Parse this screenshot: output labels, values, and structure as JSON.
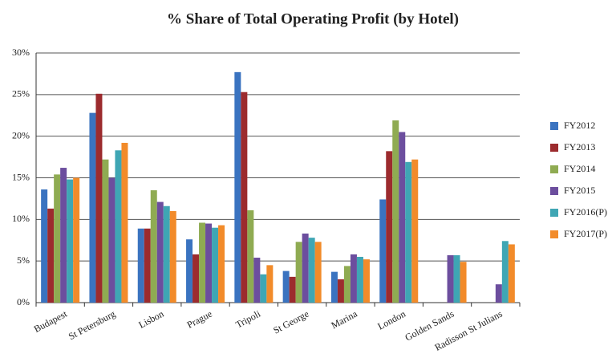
{
  "chart_data": {
    "type": "bar",
    "title": "% Share of Total Operating Profit (by Hotel)",
    "categories": [
      "Budapest",
      "St Petersburg",
      "Lisbon",
      "Prague",
      "Tripoli",
      "St George",
      "Marina",
      "London",
      "Golden Sands",
      "Radisson St Julians"
    ],
    "series": [
      {
        "name": "FY2012",
        "color": "#3a73c0",
        "values": [
          13.6,
          22.8,
          8.9,
          7.6,
          27.7,
          3.8,
          3.7,
          12.4,
          null,
          null
        ]
      },
      {
        "name": "FY2013",
        "color": "#9c2b2e",
        "values": [
          11.3,
          25.1,
          8.9,
          5.8,
          25.3,
          3.1,
          2.8,
          18.2,
          null,
          null
        ]
      },
      {
        "name": "FY2014",
        "color": "#8fab52",
        "values": [
          15.4,
          17.2,
          13.5,
          9.6,
          11.1,
          7.3,
          4.4,
          21.9,
          null,
          null
        ]
      },
      {
        "name": "FY2015",
        "color": "#6c4e9e",
        "values": [
          16.2,
          15.0,
          12.1,
          9.5,
          5.4,
          8.3,
          5.8,
          20.5,
          5.7,
          2.2
        ]
      },
      {
        "name": "FY2016(P)",
        "color": "#3fa6b4",
        "values": [
          14.8,
          18.3,
          11.6,
          9.0,
          3.4,
          7.8,
          5.5,
          16.9,
          5.7,
          7.4
        ]
      },
      {
        "name": "FY2017(P)",
        "color": "#f28b2a",
        "values": [
          15.0,
          19.2,
          11.0,
          9.3,
          4.5,
          7.3,
          5.2,
          17.2,
          4.9,
          7.0
        ]
      }
    ],
    "ylim": [
      0,
      30
    ],
    "yticks": [
      {
        "value": 0,
        "label": "0%"
      },
      {
        "value": 5,
        "label": "5%"
      },
      {
        "value": 10,
        "label": "10%"
      },
      {
        "value": 15,
        "label": "15%"
      },
      {
        "value": 20,
        "label": "20%"
      },
      {
        "value": 25,
        "label": "25%"
      },
      {
        "value": 30,
        "label": "30%"
      }
    ],
    "grid": true,
    "legend": "right"
  }
}
